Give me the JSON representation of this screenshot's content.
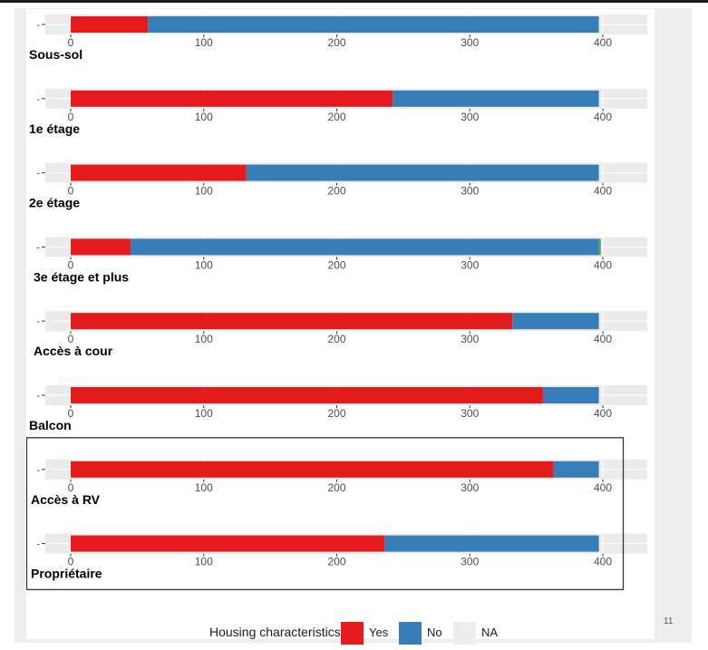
{
  "page_number": "11",
  "legend": {
    "title": "Housing characteristics",
    "items": [
      {
        "label": "Yes",
        "color": "#e41a1c"
      },
      {
        "label": "No",
        "color": "#377eb8"
      },
      {
        "label": "NA",
        "color": "#ededed"
      }
    ]
  },
  "colors": {
    "yes": "#e41a1c",
    "no": "#377eb8",
    "na_bar": "#4daf4a",
    "panel_bg": "#ebebeb",
    "highlight_box": "#333333"
  },
  "chart_data": {
    "type": "bar",
    "orientation": "horizontal",
    "stacked": true,
    "xlim": [
      0,
      400
    ],
    "x_ticks": [
      "0",
      "100",
      "200",
      "300",
      "400"
    ],
    "y_tick_label": "-",
    "categories": [
      "Sous-sol",
      "1e étage",
      "2e étage",
      "3e étage et plus",
      "Accès à cour",
      "Balcon",
      "Accès à RV",
      "Propriétaire"
    ],
    "series": [
      {
        "name": "Yes",
        "values": [
          58,
          242,
          132,
          45,
          332,
          355,
          363,
          236
        ]
      },
      {
        "name": "No",
        "values": [
          339,
          155,
          265,
          352,
          65,
          42,
          34,
          161
        ]
      },
      {
        "name": "NA",
        "values": [
          0,
          0,
          0,
          1.5,
          0,
          0,
          0,
          0
        ]
      }
    ],
    "highlighted_categories": [
      "Accès à RV",
      "Propriétaire"
    ]
  }
}
